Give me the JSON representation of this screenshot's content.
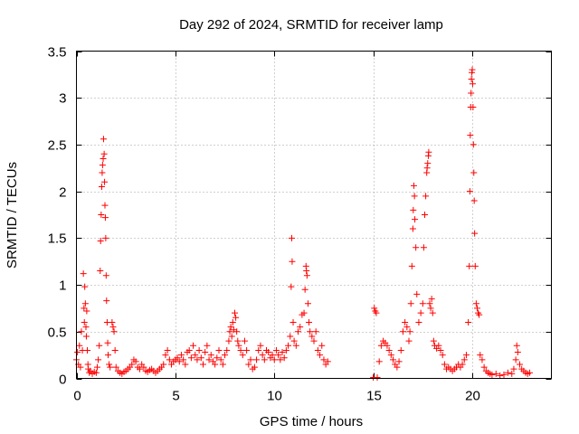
{
  "chart_data": {
    "type": "scatter",
    "title": "Day 292 of 2024, SRMTID for receiver lamp",
    "xlabel": "GPS time / hours",
    "ylabel": "SRMTID / TECUs",
    "xlim": [
      0,
      24
    ],
    "ylim": [
      0,
      3.5
    ],
    "xticks": [
      0,
      5,
      10,
      15,
      20
    ],
    "yticks": [
      0,
      0.5,
      1,
      1.5,
      2,
      2.5,
      3,
      3.5
    ],
    "grid": true,
    "marker": "+",
    "color": "#ff0000",
    "series": [
      {
        "name": "SRMTID",
        "points": [
          [
            0.0,
            0.2
          ],
          [
            0.05,
            0.28
          ],
          [
            0.1,
            0.15
          ],
          [
            0.15,
            0.35
          ],
          [
            0.2,
            0.12
          ],
          [
            0.25,
            0.5
          ],
          [
            0.3,
            0.3
          ],
          [
            0.35,
            1.12
          ],
          [
            0.38,
            0.75
          ],
          [
            0.4,
            0.6
          ],
          [
            0.42,
            0.98
          ],
          [
            0.45,
            0.8
          ],
          [
            0.48,
            0.55
          ],
          [
            0.5,
            0.45
          ],
          [
            0.52,
            0.72
          ],
          [
            0.55,
            0.3
          ],
          [
            0.58,
            0.15
          ],
          [
            0.6,
            0.1
          ],
          [
            0.65,
            0.06
          ],
          [
            0.7,
            0.08
          ],
          [
            0.8,
            0.05
          ],
          [
            0.9,
            0.07
          ],
          [
            1.0,
            0.06
          ],
          [
            1.05,
            0.12
          ],
          [
            1.1,
            0.2
          ],
          [
            1.15,
            0.35
          ],
          [
            1.2,
            1.15
          ],
          [
            1.22,
            1.47
          ],
          [
            1.25,
            1.75
          ],
          [
            1.28,
            2.05
          ],
          [
            1.3,
            2.2
          ],
          [
            1.32,
            2.28
          ],
          [
            1.35,
            2.35
          ],
          [
            1.37,
            2.56
          ],
          [
            1.4,
            2.4
          ],
          [
            1.42,
            2.1
          ],
          [
            1.44,
            1.85
          ],
          [
            1.46,
            1.72
          ],
          [
            1.48,
            1.5
          ],
          [
            1.5,
            1.1
          ],
          [
            1.52,
            0.83
          ],
          [
            1.55,
            0.6
          ],
          [
            1.58,
            0.38
          ],
          [
            1.6,
            0.25
          ],
          [
            1.65,
            0.15
          ],
          [
            1.7,
            0.12
          ],
          [
            1.8,
            0.6
          ],
          [
            1.85,
            0.55
          ],
          [
            1.9,
            0.5
          ],
          [
            1.95,
            0.3
          ],
          [
            2.0,
            0.12
          ],
          [
            2.1,
            0.08
          ],
          [
            2.2,
            0.06
          ],
          [
            2.3,
            0.05
          ],
          [
            2.4,
            0.07
          ],
          [
            2.5,
            0.08
          ],
          [
            2.6,
            0.1
          ],
          [
            2.7,
            0.12
          ],
          [
            2.8,
            0.15
          ],
          [
            2.9,
            0.2
          ],
          [
            3.0,
            0.18
          ],
          [
            3.1,
            0.12
          ],
          [
            3.2,
            0.1
          ],
          [
            3.3,
            0.15
          ],
          [
            3.4,
            0.12
          ],
          [
            3.5,
            0.08
          ],
          [
            3.6,
            0.07
          ],
          [
            3.7,
            0.09
          ],
          [
            3.8,
            0.1
          ],
          [
            3.9,
            0.08
          ],
          [
            4.0,
            0.06
          ],
          [
            4.1,
            0.08
          ],
          [
            4.2,
            0.1
          ],
          [
            4.3,
            0.12
          ],
          [
            4.4,
            0.15
          ],
          [
            4.5,
            0.25
          ],
          [
            4.6,
            0.3
          ],
          [
            4.7,
            0.2
          ],
          [
            4.8,
            0.15
          ],
          [
            4.9,
            0.18
          ],
          [
            5.0,
            0.2
          ],
          [
            5.1,
            0.22
          ],
          [
            5.2,
            0.18
          ],
          [
            5.3,
            0.25
          ],
          [
            5.4,
            0.2
          ],
          [
            5.5,
            0.15
          ],
          [
            5.6,
            0.28
          ],
          [
            5.7,
            0.3
          ],
          [
            5.8,
            0.22
          ],
          [
            5.9,
            0.35
          ],
          [
            6.0,
            0.25
          ],
          [
            6.1,
            0.2
          ],
          [
            6.2,
            0.3
          ],
          [
            6.3,
            0.22
          ],
          [
            6.4,
            0.15
          ],
          [
            6.5,
            0.28
          ],
          [
            6.6,
            0.35
          ],
          [
            6.7,
            0.2
          ],
          [
            6.8,
            0.25
          ],
          [
            6.9,
            0.18
          ],
          [
            7.0,
            0.15
          ],
          [
            7.1,
            0.22
          ],
          [
            7.2,
            0.3
          ],
          [
            7.3,
            0.2
          ],
          [
            7.4,
            0.15
          ],
          [
            7.5,
            0.25
          ],
          [
            7.6,
            0.3
          ],
          [
            7.7,
            0.4
          ],
          [
            7.75,
            0.5
          ],
          [
            7.8,
            0.55
          ],
          [
            7.85,
            0.45
          ],
          [
            7.9,
            0.6
          ],
          [
            7.95,
            0.52
          ],
          [
            8.0,
            0.7
          ],
          [
            8.05,
            0.65
          ],
          [
            8.1,
            0.5
          ],
          [
            8.15,
            0.4
          ],
          [
            8.2,
            0.35
          ],
          [
            8.3,
            0.3
          ],
          [
            8.4,
            0.25
          ],
          [
            8.5,
            0.4
          ],
          [
            8.6,
            0.3
          ],
          [
            8.7,
            0.15
          ],
          [
            8.8,
            0.2
          ],
          [
            8.9,
            0.1
          ],
          [
            9.0,
            0.12
          ],
          [
            9.1,
            0.2
          ],
          [
            9.2,
            0.3
          ],
          [
            9.3,
            0.35
          ],
          [
            9.4,
            0.25
          ],
          [
            9.5,
            0.2
          ],
          [
            9.6,
            0.3
          ],
          [
            9.7,
            0.28
          ],
          [
            9.8,
            0.22
          ],
          [
            9.9,
            0.25
          ],
          [
            10.0,
            0.2
          ],
          [
            10.1,
            0.3
          ],
          [
            10.2,
            0.25
          ],
          [
            10.3,
            0.2
          ],
          [
            10.4,
            0.28
          ],
          [
            10.5,
            0.22
          ],
          [
            10.6,
            0.3
          ],
          [
            10.7,
            0.35
          ],
          [
            10.8,
            0.45
          ],
          [
            10.85,
            0.98
          ],
          [
            10.88,
            1.5
          ],
          [
            10.9,
            1.25
          ],
          [
            10.95,
            0.6
          ],
          [
            11.0,
            0.4
          ],
          [
            11.1,
            0.35
          ],
          [
            11.2,
            0.5
          ],
          [
            11.3,
            0.55
          ],
          [
            11.4,
            0.68
          ],
          [
            11.5,
            0.7
          ],
          [
            11.55,
            0.95
          ],
          [
            11.6,
            1.2
          ],
          [
            11.62,
            1.15
          ],
          [
            11.65,
            1.1
          ],
          [
            11.7,
            0.8
          ],
          [
            11.75,
            0.6
          ],
          [
            11.8,
            0.5
          ],
          [
            11.9,
            0.45
          ],
          [
            12.0,
            0.4
          ],
          [
            12.1,
            0.5
          ],
          [
            12.2,
            0.3
          ],
          [
            12.3,
            0.25
          ],
          [
            12.4,
            0.35
          ],
          [
            12.5,
            0.2
          ],
          [
            12.6,
            0.15
          ],
          [
            12.7,
            0.18
          ],
          [
            15.0,
            0.01
          ],
          [
            15.05,
            0.75
          ],
          [
            15.1,
            0.72
          ],
          [
            15.15,
            0.7
          ],
          [
            15.2,
            0.01
          ],
          [
            15.3,
            0.18
          ],
          [
            15.4,
            0.35
          ],
          [
            15.5,
            0.4
          ],
          [
            15.6,
            0.38
          ],
          [
            15.7,
            0.35
          ],
          [
            15.8,
            0.3
          ],
          [
            15.9,
            0.25
          ],
          [
            16.0,
            0.2
          ],
          [
            16.1,
            0.15
          ],
          [
            16.2,
            0.12
          ],
          [
            16.3,
            0.18
          ],
          [
            16.4,
            0.3
          ],
          [
            16.5,
            0.5
          ],
          [
            16.6,
            0.6
          ],
          [
            16.7,
            0.55
          ],
          [
            16.8,
            0.4
          ],
          [
            16.85,
            0.5
          ],
          [
            16.9,
            0.8
          ],
          [
            16.95,
            1.2
          ],
          [
            17.0,
            1.6
          ],
          [
            17.02,
            1.8
          ],
          [
            17.05,
            2.06
          ],
          [
            17.08,
            1.95
          ],
          [
            17.1,
            1.7
          ],
          [
            17.15,
            1.4
          ],
          [
            17.2,
            0.9
          ],
          [
            17.3,
            0.6
          ],
          [
            17.4,
            0.7
          ],
          [
            17.5,
            0.8
          ],
          [
            17.55,
            1.4
          ],
          [
            17.6,
            1.75
          ],
          [
            17.65,
            1.95
          ],
          [
            17.7,
            2.2
          ],
          [
            17.72,
            2.25
          ],
          [
            17.75,
            2.3
          ],
          [
            17.78,
            2.38
          ],
          [
            17.8,
            2.42
          ],
          [
            17.85,
            0.8
          ],
          [
            17.9,
            0.75
          ],
          [
            17.95,
            0.85
          ],
          [
            18.0,
            0.7
          ],
          [
            18.05,
            0.4
          ],
          [
            18.1,
            0.35
          ],
          [
            18.2,
            0.32
          ],
          [
            18.3,
            0.35
          ],
          [
            18.4,
            0.3
          ],
          [
            18.5,
            0.25
          ],
          [
            18.6,
            0.15
          ],
          [
            18.7,
            0.1
          ],
          [
            18.8,
            0.12
          ],
          [
            18.9,
            0.1
          ],
          [
            19.0,
            0.08
          ],
          [
            19.1,
            0.1
          ],
          [
            19.2,
            0.12
          ],
          [
            19.3,
            0.15
          ],
          [
            19.4,
            0.12
          ],
          [
            19.5,
            0.15
          ],
          [
            19.6,
            0.2
          ],
          [
            19.7,
            0.25
          ],
          [
            19.8,
            0.6
          ],
          [
            19.85,
            1.2
          ],
          [
            19.88,
            2.0
          ],
          [
            19.9,
            2.6
          ],
          [
            19.92,
            2.9
          ],
          [
            19.94,
            3.05
          ],
          [
            19.96,
            3.2
          ],
          [
            19.98,
            3.27
          ],
          [
            20.0,
            3.3
          ],
          [
            20.02,
            3.15
          ],
          [
            20.04,
            2.9
          ],
          [
            20.06,
            2.5
          ],
          [
            20.08,
            2.2
          ],
          [
            20.1,
            1.9
          ],
          [
            20.12,
            1.55
          ],
          [
            20.15,
            1.2
          ],
          [
            20.2,
            0.8
          ],
          [
            20.25,
            0.75
          ],
          [
            20.3,
            0.7
          ],
          [
            20.35,
            0.68
          ],
          [
            20.4,
            0.25
          ],
          [
            20.5,
            0.2
          ],
          [
            20.6,
            0.12
          ],
          [
            20.7,
            0.08
          ],
          [
            20.8,
            0.06
          ],
          [
            20.9,
            0.05
          ],
          [
            21.0,
            0.04
          ],
          [
            21.2,
            0.05
          ],
          [
            21.4,
            0.03
          ],
          [
            21.6,
            0.04
          ],
          [
            21.8,
            0.06
          ],
          [
            22.0,
            0.05
          ],
          [
            22.1,
            0.1
          ],
          [
            22.2,
            0.2
          ],
          [
            22.25,
            0.35
          ],
          [
            22.3,
            0.28
          ],
          [
            22.4,
            0.15
          ],
          [
            22.5,
            0.1
          ],
          [
            22.6,
            0.08
          ],
          [
            22.7,
            0.06
          ],
          [
            22.8,
            0.05
          ],
          [
            22.9,
            0.06
          ]
        ]
      }
    ]
  }
}
